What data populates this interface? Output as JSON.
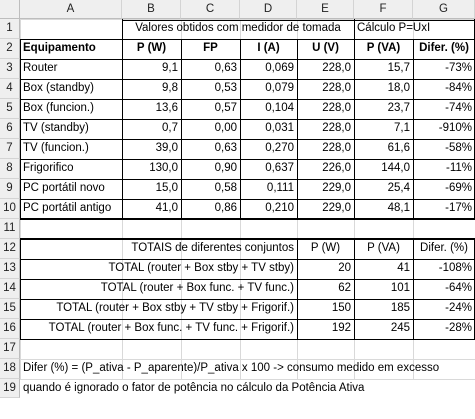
{
  "columns": [
    "A",
    "B",
    "C",
    "D",
    "E",
    "F",
    "G"
  ],
  "rows": [
    "1",
    "2",
    "3",
    "4",
    "5",
    "6",
    "7",
    "8",
    "9",
    "10",
    "11",
    "12",
    "13",
    "14",
    "15",
    "16",
    "17",
    "18",
    "19"
  ],
  "row1": {
    "measured_header": "Valores obtidos com medidor de tomada",
    "calc_header": "Cálculo P=UxI"
  },
  "row2": {
    "equipment": "Equipamento",
    "p": "P (W)",
    "fp": "FP",
    "i": "I (A)",
    "u": "U (V)",
    "pva": "P (VA)",
    "diff": "Difer. (%)"
  },
  "equipment": [
    {
      "name": "Router",
      "p": "9,1",
      "fp": "0,63",
      "i": "0,069",
      "u": "228,0",
      "pva": "15,7",
      "diff": "-73%"
    },
    {
      "name": "Box (standby)",
      "p": "9,8",
      "fp": "0,53",
      "i": "0,079",
      "u": "228,0",
      "pva": "18,0",
      "diff": "-84%"
    },
    {
      "name": "Box (funcion.)",
      "p": "13,6",
      "fp": "0,57",
      "i": "0,104",
      "u": "228,0",
      "pva": "23,7",
      "diff": "-74%"
    },
    {
      "name": "TV (standby)",
      "p": "0,7",
      "fp": "0,00",
      "i": "0,031",
      "u": "228,0",
      "pva": "7,1",
      "diff": "-910%"
    },
    {
      "name": "TV (funcion.)",
      "p": "39,0",
      "fp": "0,63",
      "i": "0,270",
      "u": "228,0",
      "pva": "61,6",
      "diff": "-58%"
    },
    {
      "name": "Frigorifico",
      "p": "130,0",
      "fp": "0,90",
      "i": "0,637",
      "u": "226,0",
      "pva": "144,0",
      "diff": "-11%"
    },
    {
      "name": "PC portátil novo",
      "p": "15,0",
      "fp": "0,58",
      "i": "0,111",
      "u": "229,0",
      "pva": "25,4",
      "diff": "-69%"
    },
    {
      "name": "PC portátil antigo",
      "p": "41,0",
      "fp": "0,86",
      "i": "0,210",
      "u": "229,0",
      "pva": "48,1",
      "diff": "-17%"
    }
  ],
  "totals_header": {
    "label": "TOTAIS de diferentes conjuntos",
    "p": "P (W)",
    "pva": "P (VA)",
    "diff": "Difer. (%)"
  },
  "totals": [
    {
      "label": "TOTAL (router + Box stby + TV stby)",
      "p": "20",
      "pva": "41",
      "diff": "-108%"
    },
    {
      "label": "TOTAL (router + Box func. + TV func.)",
      "p": "62",
      "pva": "101",
      "diff": "-64%"
    },
    {
      "label": "TOTAL (router + Box stby + TV stby + Frigorif.)",
      "p": "150",
      "pva": "185",
      "diff": "-24%"
    },
    {
      "label": "TOTAL (router + Box func. + TV func. + Frigorif.)",
      "p": "192",
      "pva": "245",
      "diff": "-28%"
    }
  ],
  "notes": {
    "line1": "Difer (%) = (P_ativa - P_aparente)/P_ativa x 100  -> consumo medido em excesso",
    "line2": "quando é ignorado o fator de potência no cálculo da Potência Ativa"
  }
}
